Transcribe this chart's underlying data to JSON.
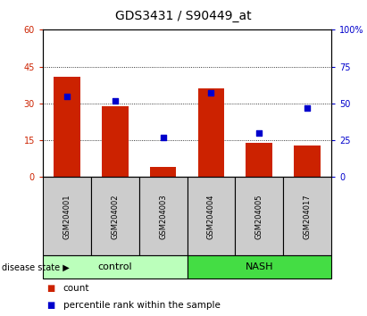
{
  "title": "GDS3431 / S90449_at",
  "samples": [
    "GSM204001",
    "GSM204002",
    "GSM204003",
    "GSM204004",
    "GSM204005",
    "GSM204017"
  ],
  "bar_values": [
    41,
    29,
    4,
    36,
    14,
    13
  ],
  "dot_values_pct": [
    55,
    52,
    27,
    57,
    30,
    47
  ],
  "bar_color": "#cc2200",
  "dot_color": "#0000cc",
  "ylim_left": [
    0,
    60
  ],
  "ylim_right": [
    0,
    100
  ],
  "yticks_left": [
    0,
    15,
    30,
    45,
    60
  ],
  "yticks_right": [
    0,
    25,
    50,
    75,
    100
  ],
  "ytick_labels_left": [
    "0",
    "15",
    "30",
    "45",
    "60"
  ],
  "ytick_labels_right": [
    "0",
    "25",
    "50",
    "75",
    "100%"
  ],
  "grid_vals": [
    15,
    30,
    45
  ],
  "groups": [
    {
      "label": "control",
      "indices": [
        0,
        1,
        2
      ],
      "color": "#bbffbb"
    },
    {
      "label": "NASH",
      "indices": [
        3,
        4,
        5
      ],
      "color": "#44dd44"
    }
  ],
  "group_label": "disease state",
  "legend_count_label": "count",
  "legend_pct_label": "percentile rank within the sample",
  "plot_bg": "#ffffff",
  "box_color": "#cccccc",
  "title_fontsize": 10,
  "tick_label_fontsize": 7,
  "sample_fontsize": 6,
  "group_fontsize": 8,
  "legend_fontsize": 7.5
}
